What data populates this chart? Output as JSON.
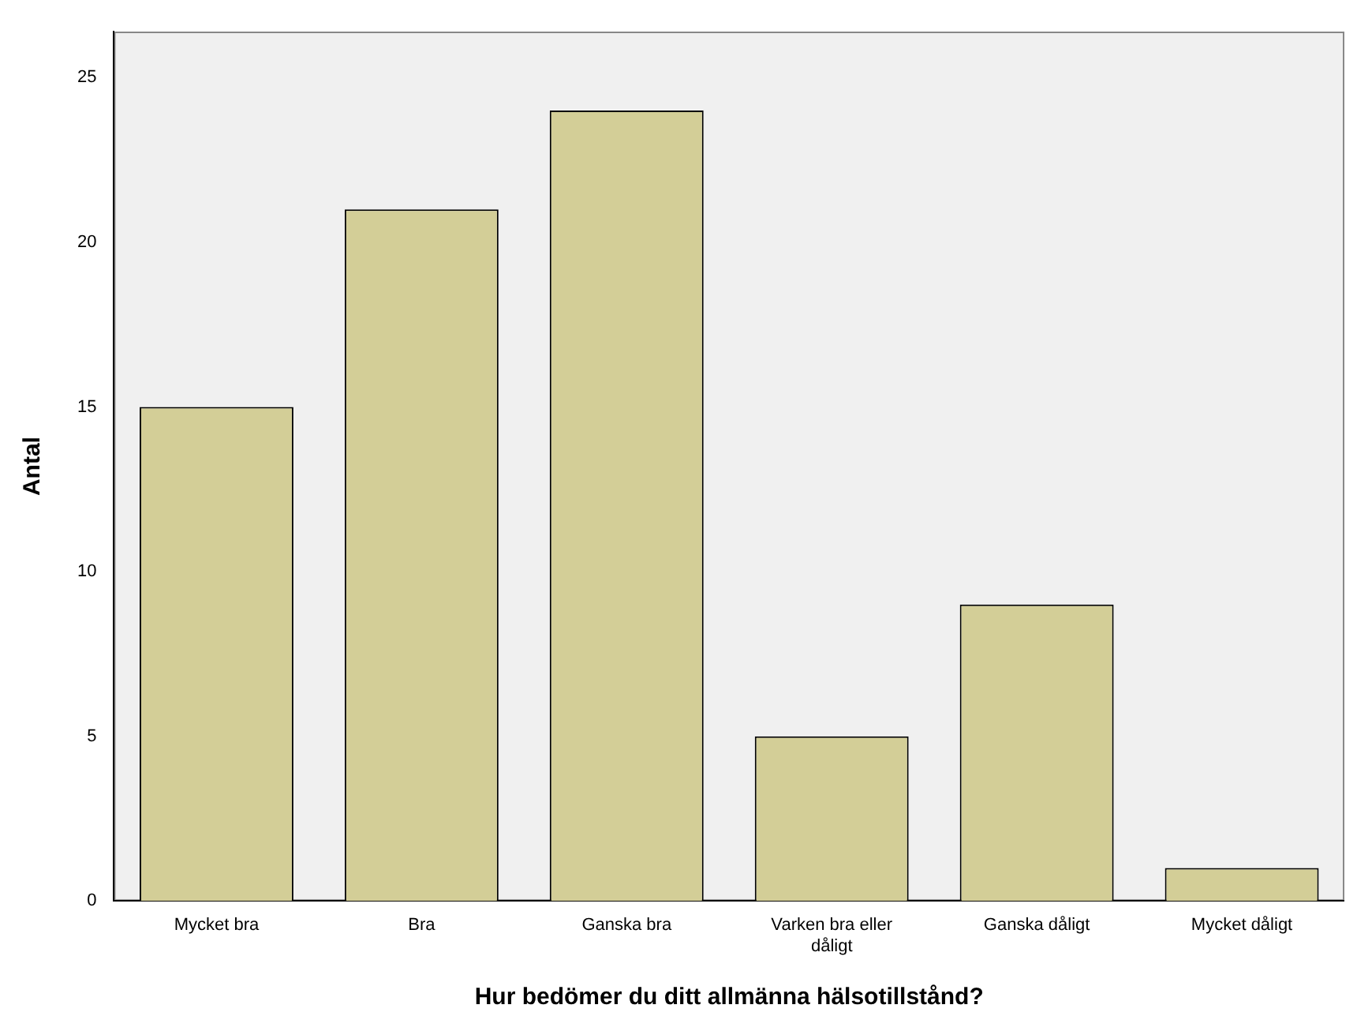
{
  "chart_data": {
    "type": "bar",
    "xlabel": "Hur bedömer du ditt allmänna hälsotillstånd?",
    "ylabel": "Antal",
    "categories": [
      "Mycket bra",
      "Bra",
      "Ganska bra",
      "Varken bra eller dåligt",
      "Ganska dåligt",
      "Mycket dåligt"
    ],
    "values": [
      15,
      21,
      24,
      5,
      9,
      1
    ],
    "color": "#d3ce97",
    "ylim": [
      0,
      26.4
    ],
    "yticks": [
      0,
      5,
      10,
      15,
      20,
      25
    ],
    "grid": false,
    "legend": false
  }
}
